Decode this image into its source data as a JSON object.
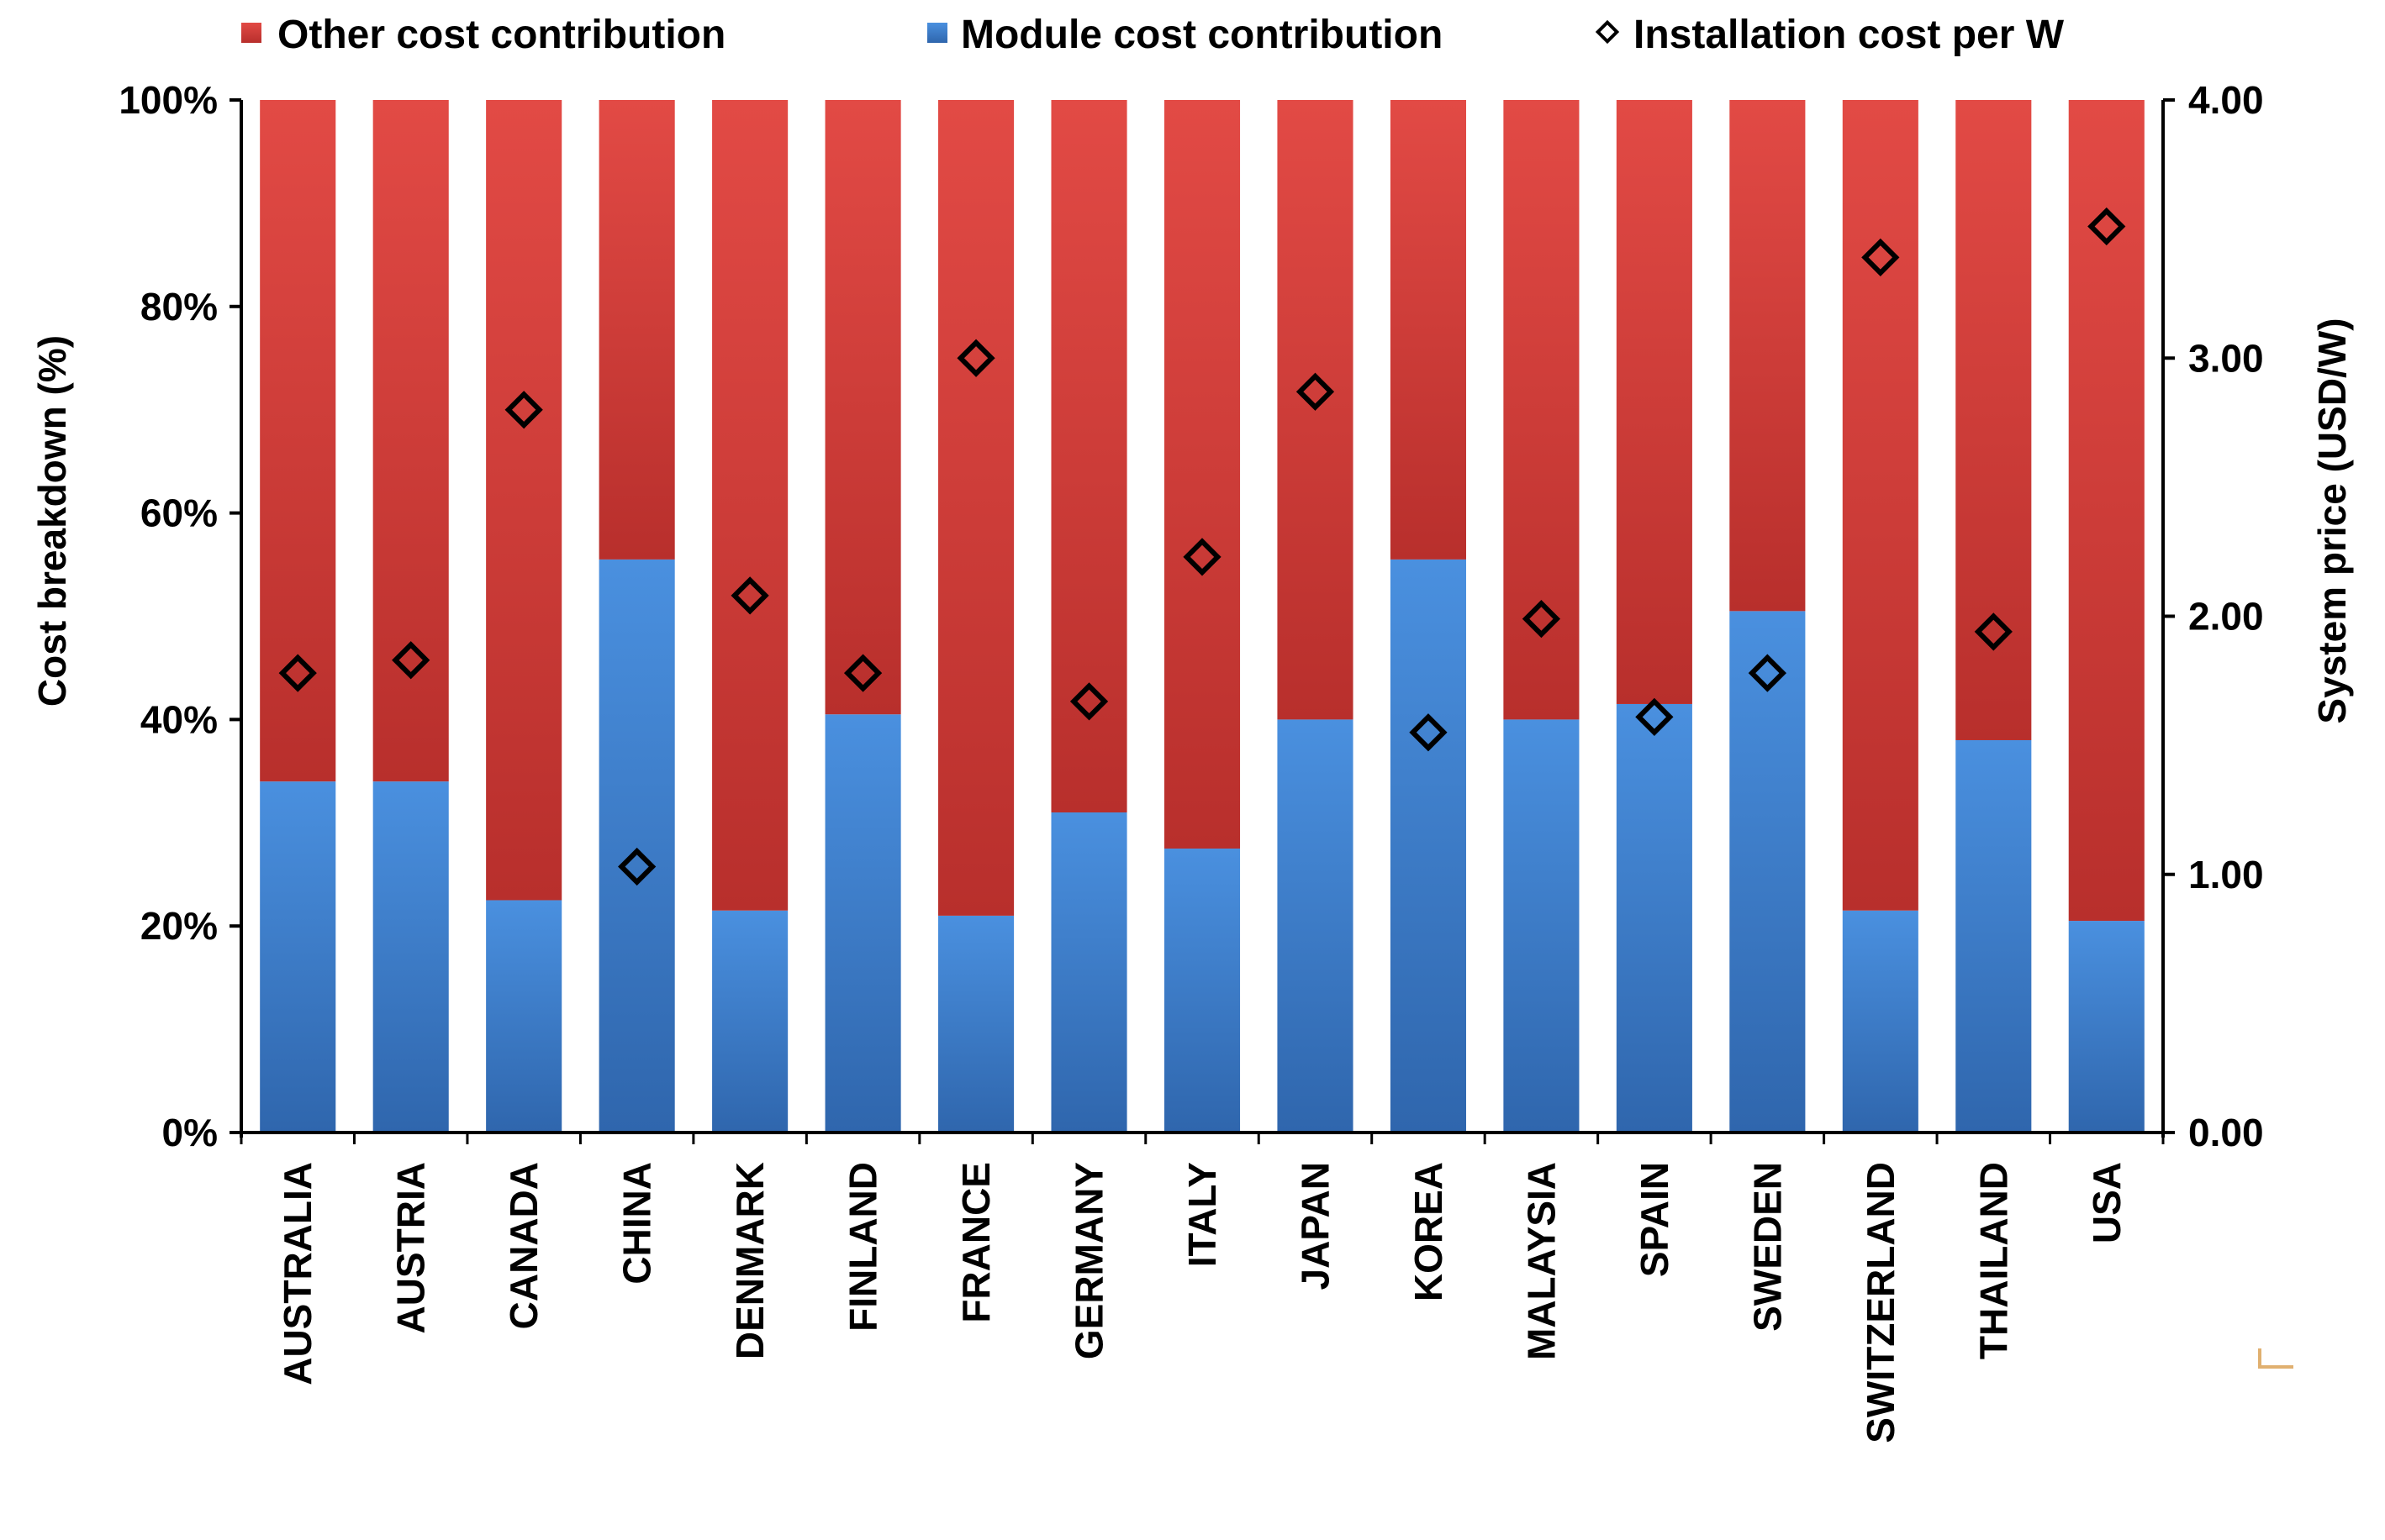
{
  "chart_data": {
    "type": "bar",
    "stacked": true,
    "categories": [
      "AUSTRALIA",
      "AUSTRIA",
      "CANADA",
      "CHINA",
      "DENMARK",
      "FINLAND",
      "FRANCE",
      "GERMANY",
      "ITALY",
      "JAPAN",
      "KOREA",
      "MALAYSIA",
      "SPAIN",
      "SWEDEN",
      "SWITZERLAND",
      "THAILAND",
      "USA"
    ],
    "series": [
      {
        "name": "Module cost contribution",
        "kind": "bar",
        "axis": "left",
        "values": [
          34,
          34,
          22.5,
          55.5,
          21.5,
          40.5,
          21,
          31,
          27.5,
          40,
          55.5,
          40,
          41.5,
          50.5,
          21.5,
          38,
          20.5
        ],
        "color": "#3a7bc8"
      },
      {
        "name": "Other cost contribution",
        "kind": "bar",
        "axis": "left",
        "values": [
          66,
          66,
          77.5,
          44.5,
          78.5,
          59.5,
          79,
          69,
          72.5,
          60,
          44.5,
          60,
          58.5,
          49.5,
          78.5,
          62,
          79.5
        ],
        "color": "#cf3a36"
      },
      {
        "name": "Installation cost per W",
        "kind": "marker",
        "marker": "diamond",
        "axis": "right",
        "values": [
          1.78,
          1.83,
          2.8,
          1.03,
          2.08,
          1.78,
          3.0,
          1.67,
          2.23,
          2.87,
          1.55,
          1.99,
          1.61,
          1.78,
          3.39,
          1.94,
          3.51
        ]
      }
    ],
    "legend_order": [
      "Other cost contribution",
      "Module cost contribution",
      "Installation cost per W"
    ],
    "legend_position": "top",
    "ylabel": "Cost breakdown (%)",
    "y2label": "System price (USD/W)",
    "ylim": [
      0,
      100
    ],
    "y2lim": [
      0,
      4
    ],
    "yticks": [
      "0%",
      "20%",
      "40%",
      "60%",
      "80%",
      "100%"
    ],
    "y2ticks": [
      "0.00",
      "1.00",
      "2.00",
      "3.00",
      "4.00"
    ],
    "grid": false
  }
}
